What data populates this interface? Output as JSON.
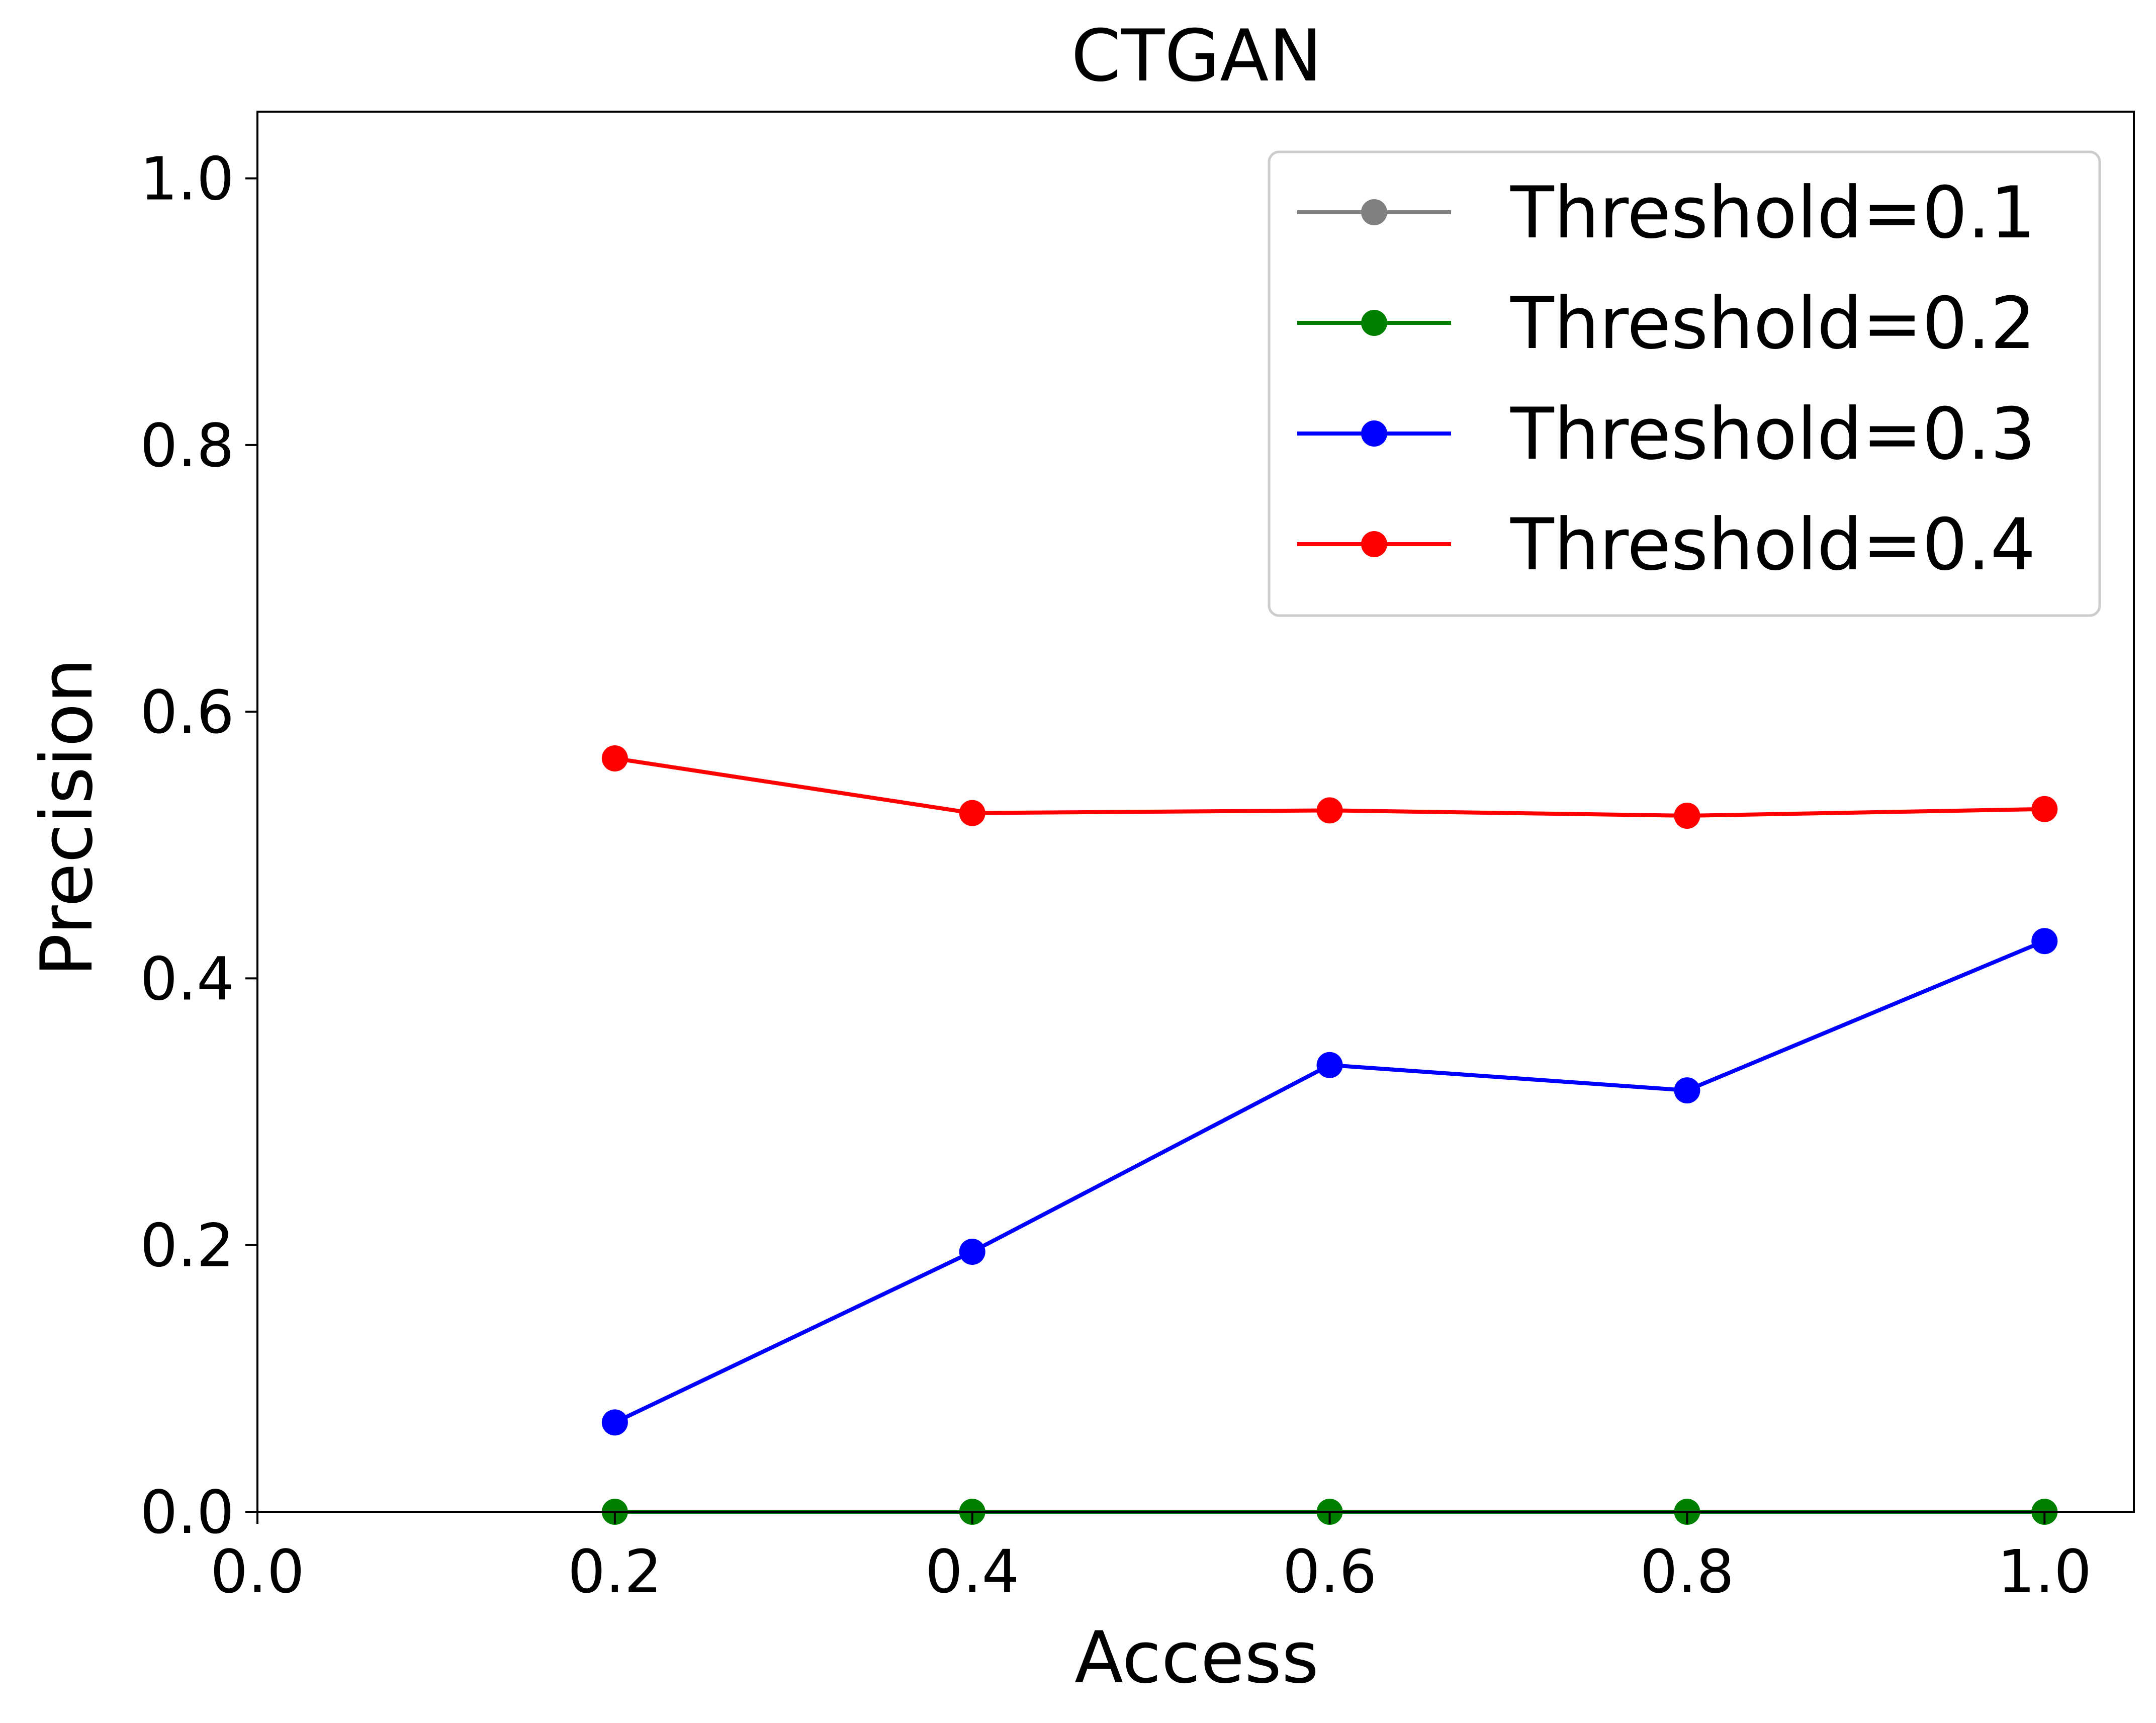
{
  "chart_data": {
    "type": "line",
    "title": "CTGAN",
    "xlabel": "Access",
    "ylabel": "Precision",
    "xlim": [
      0.0,
      1.05
    ],
    "ylim": [
      0.0,
      1.05
    ],
    "xticks": [
      "0.0",
      "0.2",
      "0.4",
      "0.6",
      "0.8",
      "1.0"
    ],
    "yticks": [
      "0.0",
      "0.2",
      "0.4",
      "0.6",
      "0.8",
      "1.0"
    ],
    "grid": false,
    "legend_position": "top-right",
    "x": [
      0.2,
      0.4,
      0.6,
      0.8,
      1.0
    ],
    "series": [
      {
        "name": "Threshold=0.1",
        "color": "#808080",
        "values": [
          null,
          null,
          null,
          null,
          null
        ]
      },
      {
        "name": "Threshold=0.2",
        "color": "#008000",
        "values": [
          0.0,
          0.0,
          0.0,
          0.0,
          0.0
        ]
      },
      {
        "name": "Threshold=0.3",
        "color": "#0000ff",
        "values": [
          0.067,
          0.195,
          0.335,
          0.316,
          0.428
        ]
      },
      {
        "name": "Threshold=0.4",
        "color": "#ff0000",
        "values": [
          0.565,
          0.524,
          0.526,
          0.522,
          0.527
        ]
      }
    ]
  }
}
